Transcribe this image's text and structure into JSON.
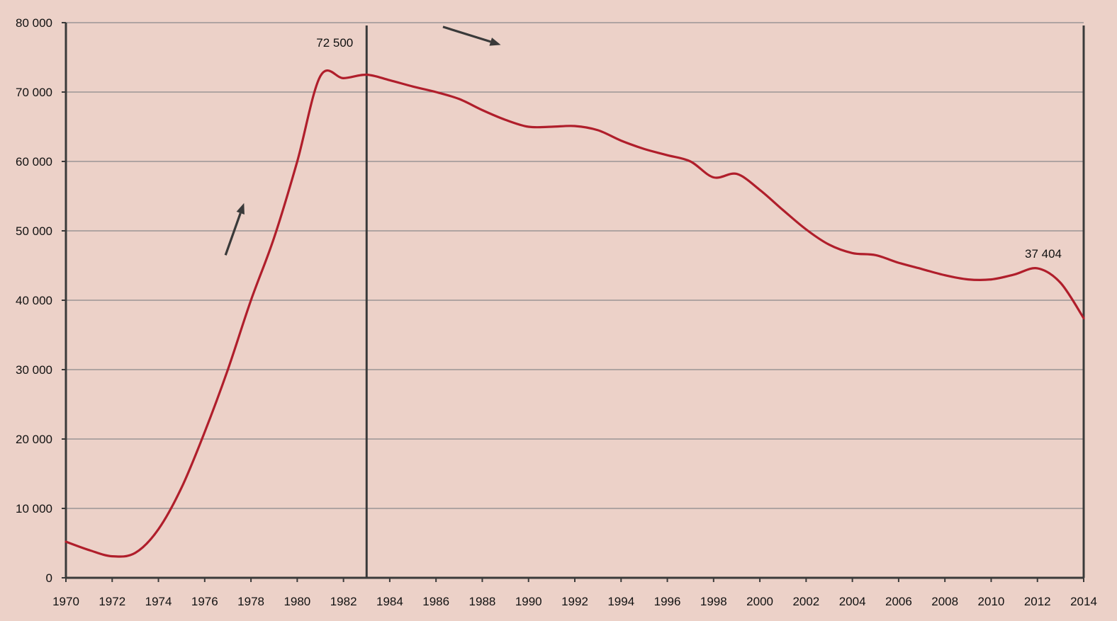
{
  "chart_data": {
    "type": "line",
    "title": "",
    "xlabel": "",
    "ylabel": "",
    "xlim": [
      1970,
      2014
    ],
    "ylim": [
      0,
      80000
    ],
    "x_ticks": [
      "1970",
      "1972",
      "1974",
      "1976",
      "1978",
      "1980",
      "1982",
      "1984",
      "1986",
      "1988",
      "1990",
      "1992",
      "1994",
      "1996",
      "1998",
      "2000",
      "2002",
      "2004",
      "2006",
      "2008",
      "2010",
      "2012",
      "2014"
    ],
    "y_ticks": [
      "0",
      "10 000",
      "20 000",
      "30 000",
      "40 000",
      "50 000",
      "60 000",
      "70 000",
      "80 000"
    ],
    "grid": "horizontal",
    "colors": {
      "background": "#ecd1c8",
      "line": "#b01e2b",
      "axis": "#3a3a3a",
      "grid": "#8a8a8a",
      "arrow": "#3a3a3a"
    },
    "series": [
      {
        "x": [
          1970,
          1971,
          1972,
          1973,
          1974,
          1975,
          1976,
          1977,
          1978,
          1979,
          1980,
          1981,
          1982,
          1983,
          1984,
          1985,
          1986,
          1987,
          1988,
          1989,
          1990,
          1991,
          1992,
          1993,
          1994,
          1995,
          1996,
          1997,
          1998,
          1999,
          2000,
          2001,
          2002,
          2003,
          2004,
          2005,
          2006,
          2007,
          2008,
          2009,
          2010,
          2011,
          2012,
          2013,
          2014
        ],
        "y": [
          5200,
          4000,
          3100,
          3600,
          7000,
          13000,
          21000,
          30000,
          40000,
          49000,
          60000,
          72300,
          72000,
          72500,
          71700,
          70800,
          70000,
          69000,
          67400,
          66000,
          65000,
          65000,
          65100,
          64500,
          63000,
          61800,
          60900,
          60000,
          57700,
          58200,
          55900,
          53000,
          50200,
          48000,
          46800,
          46500,
          45400,
          44500,
          43600,
          43000,
          43000,
          43700,
          44600,
          42500,
          37404
        ]
      }
    ],
    "annotations": [
      {
        "text": "72 500",
        "x": 1983,
        "y": 72500
      },
      {
        "text": "37 404",
        "x": 2014,
        "y": 37404
      }
    ],
    "vertical_lines": [
      1983,
      2014
    ],
    "trend_arrows": [
      {
        "direction": "up",
        "from": [
          1976.9,
          46500
        ],
        "to": [
          1977.7,
          54000
        ]
      },
      {
        "direction": "down",
        "from": [
          1986.3,
          79400
        ],
        "to": [
          1988.8,
          76800
        ]
      }
    ]
  }
}
